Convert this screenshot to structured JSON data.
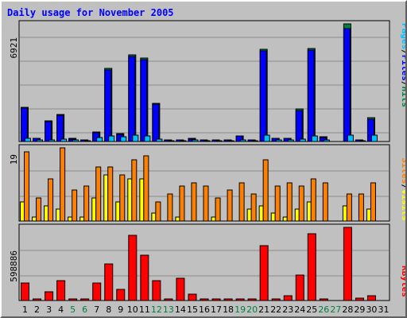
{
  "title": "Daily usage for November 2005",
  "colors": {
    "background": "#c0c0c0",
    "hits": "#008040",
    "files": "#0000ff",
    "pages": "#00c0ff",
    "visits": "#ffff00",
    "sites": "#ff8000",
    "kbytes": "#ff0000",
    "weekend_day": "#008040",
    "weekday": "#000000"
  },
  "chart_data": [
    {
      "type": "bar",
      "panel": "hits-files-pages",
      "categories": [
        "1",
        "2",
        "3",
        "4",
        "5",
        "6",
        "7",
        "8",
        "9",
        "10",
        "11",
        "12",
        "13",
        "14",
        "15",
        "16",
        "17",
        "18",
        "19",
        "20",
        "21",
        "22",
        "23",
        "24",
        "25",
        "26",
        "27",
        "28",
        "29",
        "30",
        "31"
      ],
      "y_label_max": "6921",
      "ylim": [
        0,
        6921
      ],
      "legend": [
        "Pages",
        "/",
        "Files",
        "/",
        "Hits"
      ],
      "series": [
        {
          "name": "Hits",
          "values": [
            2030,
            200,
            1220,
            1600,
            170,
            100,
            540,
            4300,
            450,
            5080,
            4920,
            2240,
            100,
            100,
            170,
            100,
            100,
            100,
            350,
            100,
            5410,
            200,
            200,
            1900,
            5490,
            270,
            0,
            6921,
            100,
            1390,
            0
          ]
        },
        {
          "name": "Files",
          "values": [
            1970,
            180,
            1180,
            1520,
            150,
            80,
            500,
            4220,
            420,
            5000,
            4820,
            2180,
            80,
            80,
            150,
            80,
            80,
            80,
            320,
            80,
            5330,
            180,
            180,
            1840,
            5400,
            250,
            0,
            6650,
            80,
            1330,
            0
          ]
        },
        {
          "name": "Pages",
          "values": [
            200,
            100,
            110,
            150,
            80,
            40,
            220,
            330,
            270,
            370,
            340,
            130,
            50,
            50,
            80,
            60,
            60,
            60,
            100,
            60,
            380,
            90,
            80,
            160,
            350,
            100,
            0,
            360,
            50,
            360,
            0
          ]
        }
      ]
    },
    {
      "type": "bar",
      "panel": "visits-sites",
      "categories": [
        "1",
        "2",
        "3",
        "4",
        "5",
        "6",
        "7",
        "8",
        "9",
        "10",
        "11",
        "12",
        "13",
        "14",
        "15",
        "16",
        "17",
        "18",
        "19",
        "20",
        "21",
        "22",
        "23",
        "24",
        "25",
        "26",
        "27",
        "28",
        "29",
        "30",
        "31"
      ],
      "y_label_max": "19",
      "ylim": [
        0,
        19
      ],
      "legend": [
        "Sites",
        "/",
        "Visits"
      ],
      "series": [
        {
          "name": "Visits",
          "values": [
            5,
            1,
            4,
            3,
            1,
            1,
            6,
            12,
            5,
            11,
            11,
            2,
            0,
            1,
            0,
            0,
            1,
            0,
            0,
            3,
            4,
            2,
            1,
            3,
            5,
            0,
            0,
            4,
            0,
            3,
            0
          ]
        },
        {
          "name": "Sites",
          "values": [
            18,
            6,
            11,
            19,
            8,
            9,
            14,
            14,
            12,
            16,
            17,
            5,
            7,
            9,
            10,
            9,
            6,
            8,
            10,
            7,
            16,
            9,
            10,
            9,
            11,
            10,
            0,
            7,
            7,
            10,
            0
          ]
        }
      ]
    },
    {
      "type": "bar",
      "panel": "kbytes",
      "categories": [
        "1",
        "2",
        "3",
        "4",
        "5",
        "6",
        "7",
        "8",
        "9",
        "10",
        "11",
        "12",
        "13",
        "14",
        "15",
        "16",
        "17",
        "18",
        "19",
        "20",
        "21",
        "22",
        "23",
        "24",
        "25",
        "26",
        "27",
        "28",
        "29",
        "30",
        "31"
      ],
      "y_label_max": "598886",
      "ylim": [
        0,
        598886
      ],
      "legend": [
        "KBytes"
      ],
      "series": [
        {
          "name": "KBytes",
          "values": [
            146000,
            16000,
            70000,
            160000,
            16000,
            10000,
            146000,
            300000,
            88000,
            534000,
            372000,
            160000,
            12000,
            182000,
            50000,
            16000,
            16000,
            16000,
            16000,
            16000,
            447000,
            12000,
            36000,
            210000,
            550000,
            10000,
            0,
            598886,
            20000,
            42000,
            0
          ]
        }
      ]
    }
  ]
}
